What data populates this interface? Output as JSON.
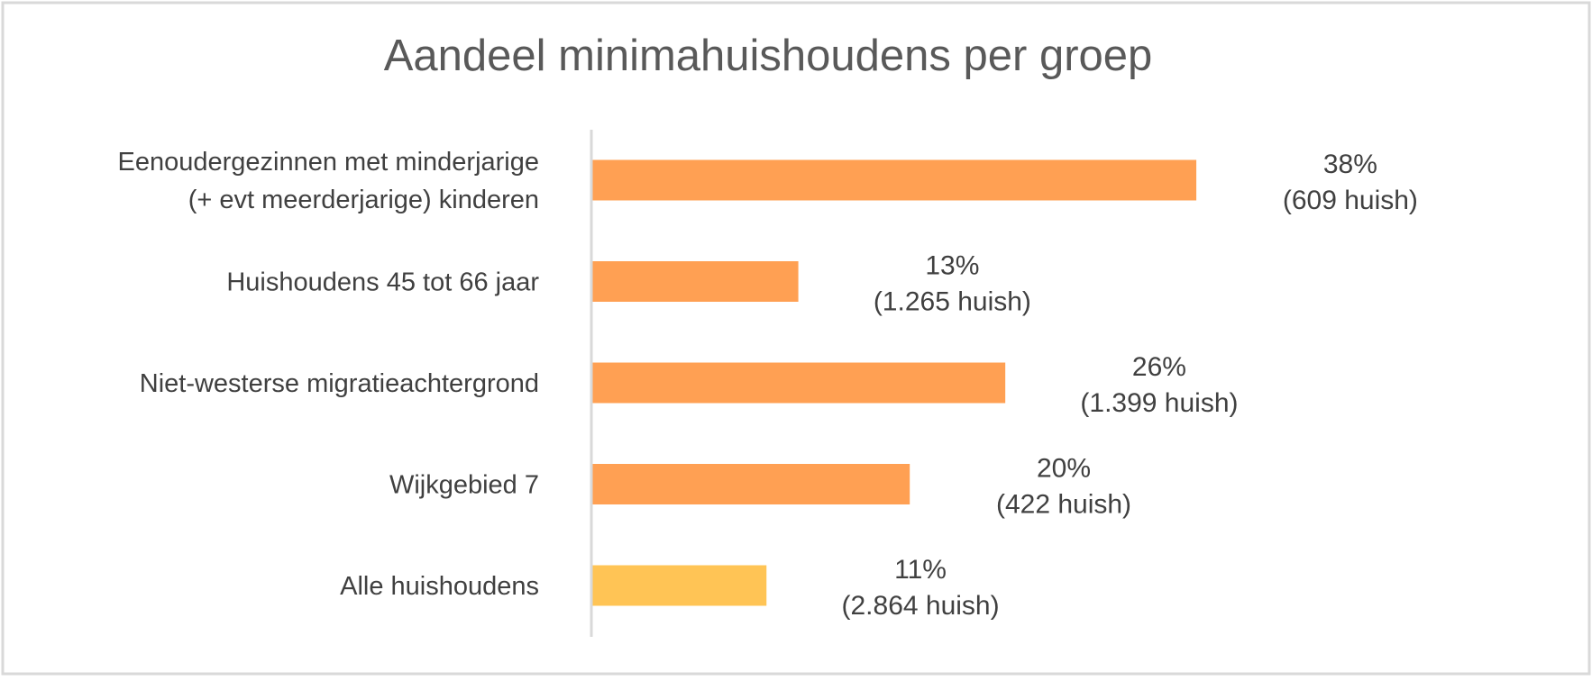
{
  "chart_data": {
    "type": "bar",
    "orientation": "horizontal",
    "title": "Aandeel minimahuishoudens per groep",
    "xlabel": "",
    "ylabel": "",
    "xlim": [
      0,
      40
    ],
    "grid": false,
    "legend": "none",
    "categories": [
      [
        "Eenoudergezinnen met minderjarige",
        "(+ evt meerderjarige) kinderen"
      ],
      [
        "Huishoudens 45 tot 66 jaar"
      ],
      [
        "Niet-westerse migratieachtergrond"
      ],
      [
        "Wijkgebied 7"
      ],
      [
        "Alle huishoudens"
      ]
    ],
    "values": [
      38,
      13,
      26,
      20,
      11
    ],
    "unit": "%",
    "data_labels": [
      [
        "38%",
        "(609 huish)"
      ],
      [
        "13%",
        "(1.265 huish)"
      ],
      [
        "26%",
        "(1.399 huish)"
      ],
      [
        "20%",
        "(422 huish)"
      ],
      [
        "11%",
        "(2.864 huish)"
      ]
    ],
    "colors": [
      "#FFA053",
      "#FFA053",
      "#FFA053",
      "#FFA053",
      "#FFC455"
    ]
  },
  "style": {
    "frame_border": "#D9D9D9",
    "axis_color": "#D9D9D9",
    "text_color": "#404040",
    "title_color": "#595959"
  }
}
